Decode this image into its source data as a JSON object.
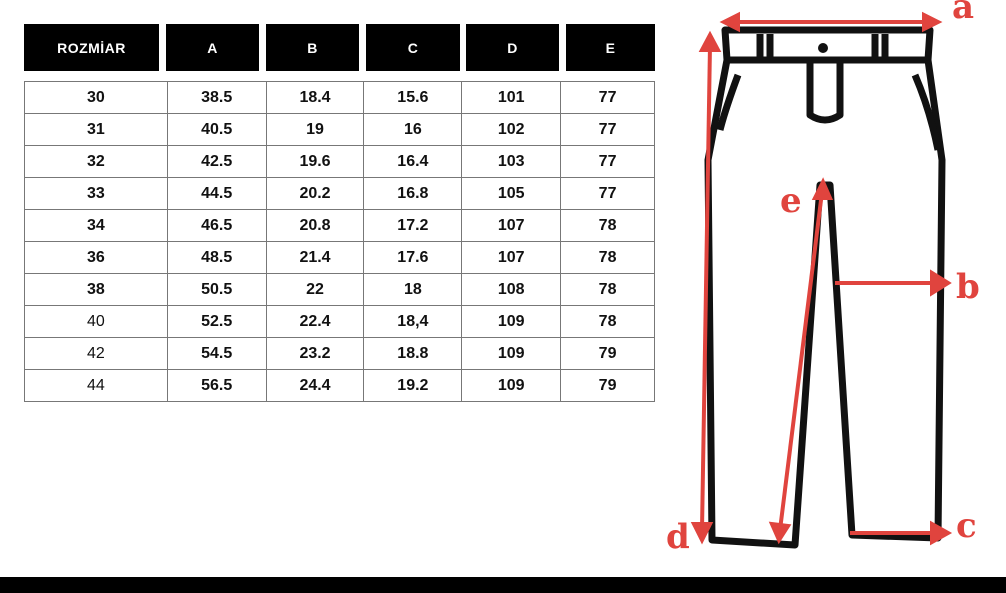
{
  "table": {
    "headers": [
      "ROZMİAR",
      "A",
      "B",
      "C",
      "D",
      "E"
    ],
    "rows": [
      [
        "30",
        "38.5",
        "18.4",
        "15.6",
        "101",
        "77"
      ],
      [
        "31",
        "40.5",
        "19",
        "16",
        "102",
        "77"
      ],
      [
        "32",
        "42.5",
        "19.6",
        "16.4",
        "103",
        "77"
      ],
      [
        "33",
        "44.5",
        "20.2",
        "16.8",
        "105",
        "77"
      ],
      [
        "34",
        "46.5",
        "20.8",
        "17.2",
        "107",
        "78"
      ],
      [
        "36",
        "48.5",
        "21.4",
        "17.6",
        "107",
        "78"
      ],
      [
        "38",
        "50.5",
        "22",
        "18",
        "108",
        "78"
      ],
      [
        "40",
        "52.5",
        "22.4",
        "18,4",
        "109",
        "78"
      ],
      [
        "42",
        "54.5",
        "23.2",
        "18.8",
        "109",
        "79"
      ],
      [
        "44",
        "56.5",
        "24.4",
        "19.2",
        "109",
        "79"
      ]
    ]
  },
  "diagram": {
    "labels": {
      "a": "a",
      "b": "b",
      "c": "c",
      "d": "d",
      "e": "e"
    },
    "accent_color": "#e0443e",
    "icon": "pants-measurement-diagram"
  }
}
